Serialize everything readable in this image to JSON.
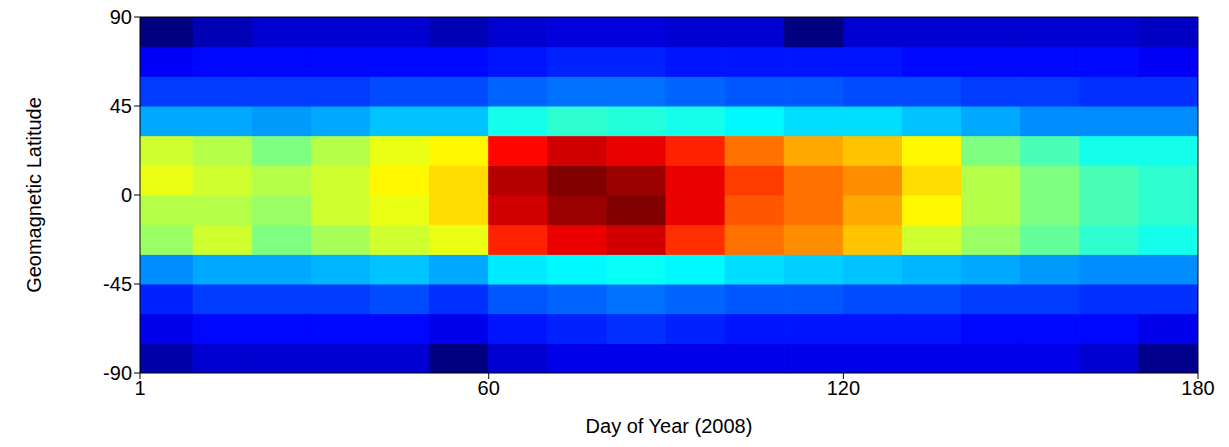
{
  "chart_data": {
    "type": "heatmap",
    "x_label": "Day of Year (2008)",
    "y_label": "Geomagnetic Latitude",
    "xlim": [
      1,
      180
    ],
    "ylim": [
      -90,
      90
    ],
    "xticks": [
      1,
      60,
      120,
      180
    ],
    "yticks": [
      -90,
      -45,
      0,
      45,
      90
    ],
    "x_edges": [
      1,
      10,
      20,
      30,
      40,
      50,
      60,
      70,
      80,
      90,
      100,
      110,
      120,
      130,
      140,
      150,
      160,
      170,
      180
    ],
    "y_edges": [
      -90,
      -75,
      -60,
      -45,
      -30,
      -15,
      0,
      15,
      30,
      45,
      60,
      75,
      90
    ],
    "cells": [
      [
        1.5,
        1.8,
        1.8,
        1.8,
        1.8,
        1.2,
        1.8,
        2,
        2,
        2,
        2,
        2,
        2,
        2,
        2,
        2,
        1.8,
        1.3
      ],
      [
        2,
        2.2,
        2.2,
        2.2,
        2.2,
        2,
        2.3,
        2.4,
        2.5,
        2.4,
        2.3,
        2.3,
        2.3,
        2.3,
        2.2,
        2.2,
        2.2,
        2
      ],
      [
        2.4,
        2.6,
        2.6,
        2.6,
        2.7,
        2.5,
        2.8,
        2.9,
        3,
        2.9,
        2.8,
        2.8,
        2.7,
        2.7,
        2.6,
        2.6,
        2.5,
        2.5
      ],
      [
        3.2,
        3.4,
        3.4,
        3.5,
        3.6,
        3.4,
        3.9,
        4,
        4.1,
        4,
        3.8,
        3.7,
        3.6,
        3.5,
        3.4,
        3.3,
        3.2,
        3.2
      ],
      [
        5.2,
        5.6,
        5,
        5.3,
        5.6,
        5.8,
        7.6,
        8,
        8.2,
        7.5,
        7,
        6.8,
        6.4,
        5.6,
        5.2,
        4.8,
        4.4,
        4.2
      ],
      [
        5.4,
        5.4,
        5.2,
        5.6,
        5.8,
        6.2,
        8.2,
        8.6,
        8.8,
        8,
        7.2,
        7,
        6.6,
        6,
        5.4,
        5,
        4.6,
        4.4
      ],
      [
        5.8,
        5.6,
        5.4,
        5.6,
        6,
        6.2,
        8.4,
        8.8,
        8.6,
        8,
        7.4,
        7,
        6.8,
        6.2,
        5.4,
        5,
        4.6,
        4.4
      ],
      [
        5.6,
        5.4,
        5,
        5.4,
        5.8,
        6,
        7.8,
        8.2,
        8,
        7.6,
        7,
        6.6,
        6.4,
        6,
        5,
        4.6,
        4.2,
        4.2
      ],
      [
        3.4,
        3.4,
        3.3,
        3.4,
        3.6,
        3.6,
        4.2,
        4.4,
        4.3,
        4.2,
        4,
        3.8,
        3.8,
        3.6,
        3.4,
        3.2,
        3.2,
        3.2
      ],
      [
        2.6,
        2.6,
        2.6,
        2.6,
        2.7,
        2.7,
        2.9,
        3,
        3,
        2.9,
        2.8,
        2.8,
        2.7,
        2.7,
        2.6,
        2.6,
        2.5,
        2.5
      ],
      [
        2.1,
        2.2,
        2.2,
        2.2,
        2.2,
        2.2,
        2.3,
        2.4,
        2.4,
        2.3,
        2.3,
        2.3,
        2.3,
        2.2,
        2.2,
        2.2,
        2.2,
        2.1
      ],
      [
        1.2,
        1.6,
        1.8,
        1.8,
        1.8,
        1.6,
        1.8,
        1.9,
        1.9,
        1.8,
        1.8,
        1.2,
        1.8,
        1.8,
        1.8,
        1.8,
        1.8,
        1.7
      ]
    ]
  }
}
